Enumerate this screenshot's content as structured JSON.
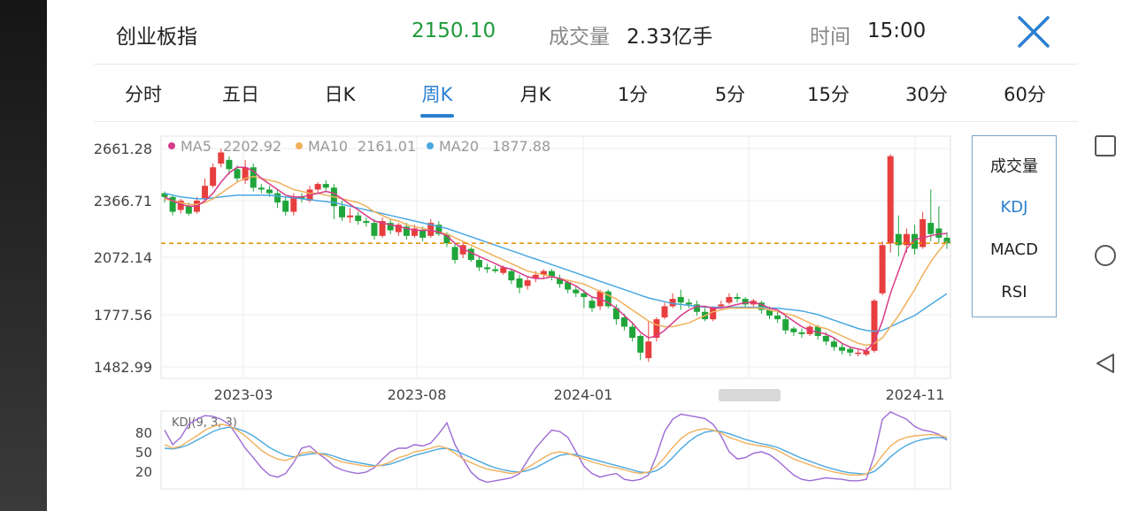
{
  "header": {
    "index_name": "创业板指",
    "price": "2150.10",
    "volume_label": "成交量",
    "volume_value": "2.33亿手",
    "time_label": "时间",
    "time_value": "15:00"
  },
  "tabs": [
    {
      "label": "分时"
    },
    {
      "label": "五日"
    },
    {
      "label": "日K"
    },
    {
      "label": "周K"
    },
    {
      "label": "月K"
    },
    {
      "label": "1分"
    },
    {
      "label": "5分"
    },
    {
      "label": "15分"
    },
    {
      "label": "30分"
    },
    {
      "label": "60分"
    }
  ],
  "active_tab": "周K",
  "indicators": [
    {
      "label": "成交量"
    },
    {
      "label": "KDJ"
    },
    {
      "label": "MACD"
    },
    {
      "label": "RSI"
    }
  ],
  "active_indicator": "KDJ",
  "nav_icons": [
    "square-icon",
    "circle-icon",
    "back-triangle-icon"
  ],
  "colors": {
    "up": "#e83e3e",
    "down": "#20a53a",
    "price_green": "#1f9a3a",
    "accent": "#2b7fd0",
    "ma5": "#d83a8a",
    "ma10": "#f0b05c",
    "ma20": "#4aa8e0",
    "ref_line": "#e68a00",
    "k": "#f0b05c",
    "d": "#4aa8e0",
    "j": "#9c6bd6"
  },
  "chart_data": [
    {
      "type": "candlestick",
      "title": "",
      "legend": [
        {
          "name": "MA5",
          "value": "2202.92"
        },
        {
          "name": "MA10",
          "value": "2161.01"
        },
        {
          "name": "MA20",
          "value": "1877.88"
        }
      ],
      "y_ticks": [
        "2661.28",
        "2366.71",
        "2072.14",
        "1777.56",
        "1482.99"
      ],
      "ylim": [
        1482.99,
        2661.28
      ],
      "x_ticks": [
        "2023-03",
        "2023-08",
        "2024-01",
        "2024-11"
      ],
      "reference_line": 2150.1,
      "candles": [
        [
          2420,
          2400,
          2430,
          2370
        ],
        [
          2400,
          2320,
          2410,
          2300
        ],
        [
          2330,
          2380,
          2390,
          2310
        ],
        [
          2350,
          2310,
          2370,
          2300
        ],
        [
          2320,
          2380,
          2400,
          2310
        ],
        [
          2390,
          2460,
          2500,
          2380
        ],
        [
          2460,
          2560,
          2580,
          2450
        ],
        [
          2580,
          2640,
          2660,
          2560
        ],
        [
          2600,
          2550,
          2620,
          2520
        ],
        [
          2550,
          2500,
          2570,
          2480
        ],
        [
          2490,
          2560,
          2600,
          2470
        ],
        [
          2560,
          2450,
          2580,
          2430
        ],
        [
          2450,
          2440,
          2470,
          2420
        ],
        [
          2440,
          2420,
          2460,
          2400
        ],
        [
          2420,
          2370,
          2440,
          2340
        ],
        [
          2380,
          2320,
          2400,
          2300
        ],
        [
          2320,
          2400,
          2420,
          2300
        ],
        [
          2400,
          2390,
          2420,
          2370
        ],
        [
          2380,
          2440,
          2460,
          2370
        ],
        [
          2440,
          2470,
          2480,
          2420
        ],
        [
          2470,
          2450,
          2490,
          2430
        ],
        [
          2450,
          2350,
          2470,
          2280
        ],
        [
          2350,
          2290,
          2380,
          2270
        ],
        [
          2290,
          2300,
          2340,
          2260
        ],
        [
          2300,
          2270,
          2320,
          2250
        ],
        [
          2270,
          2260,
          2290,
          2240
        ],
        [
          2260,
          2190,
          2280,
          2170
        ],
        [
          2190,
          2270,
          2290,
          2180
        ],
        [
          2260,
          2220,
          2280,
          2200
        ],
        [
          2210,
          2250,
          2260,
          2190
        ],
        [
          2240,
          2190,
          2260,
          2170
        ],
        [
          2190,
          2230,
          2250,
          2180
        ],
        [
          2220,
          2180,
          2240,
          2160
        ],
        [
          2190,
          2260,
          2280,
          2180
        ],
        [
          2250,
          2200,
          2270,
          2190
        ],
        [
          2200,
          2150,
          2210,
          2130
        ],
        [
          2130,
          2060,
          2150,
          2040
        ],
        [
          2090,
          2140,
          2160,
          2070
        ],
        [
          2120,
          2060,
          2130,
          2050
        ],
        [
          2060,
          2020,
          2080,
          2000
        ],
        [
          2020,
          2010,
          2040,
          1990
        ],
        [
          2010,
          2000,
          2030,
          1990
        ],
        [
          1990,
          2020,
          2030,
          1980
        ],
        [
          2000,
          1950,
          2010,
          1930
        ],
        [
          1960,
          1910,
          1980,
          1880
        ],
        [
          1920,
          1950,
          1970,
          1900
        ],
        [
          1960,
          1980,
          2000,
          1940
        ],
        [
          1980,
          2000,
          2010,
          1960
        ],
        [
          2000,
          1970,
          2010,
          1950
        ],
        [
          1960,
          1930,
          1980,
          1910
        ],
        [
          1940,
          1900,
          1950,
          1880
        ],
        [
          1900,
          1880,
          1920,
          1860
        ],
        [
          1880,
          1860,
          1900,
          1800
        ],
        [
          1840,
          1800,
          1860,
          1780
        ],
        [
          1810,
          1890,
          1900,
          1790
        ],
        [
          1890,
          1810,
          1900,
          1800
        ],
        [
          1800,
          1740,
          1820,
          1710
        ],
        [
          1750,
          1700,
          1770,
          1680
        ],
        [
          1700,
          1640,
          1720,
          1620
        ],
        [
          1650,
          1560,
          1660,
          1520
        ],
        [
          1530,
          1620,
          1730,
          1510
        ],
        [
          1640,
          1740,
          1750,
          1620
        ],
        [
          1750,
          1810,
          1830,
          1740
        ],
        [
          1810,
          1850,
          1880,
          1800
        ],
        [
          1860,
          1830,
          1900,
          1790
        ],
        [
          1830,
          1820,
          1850,
          1800
        ],
        [
          1820,
          1780,
          1840,
          1760
        ],
        [
          1780,
          1740,
          1800,
          1730
        ],
        [
          1740,
          1800,
          1810,
          1730
        ],
        [
          1810,
          1820,
          1840,
          1800
        ],
        [
          1830,
          1860,
          1880,
          1820
        ],
        [
          1860,
          1850,
          1880,
          1830
        ],
        [
          1850,
          1820,
          1860,
          1800
        ],
        [
          1820,
          1840,
          1850,
          1810
        ],
        [
          1830,
          1790,
          1840,
          1770
        ],
        [
          1790,
          1760,
          1810,
          1740
        ],
        [
          1760,
          1740,
          1780,
          1720
        ],
        [
          1740,
          1680,
          1760,
          1660
        ],
        [
          1690,
          1670,
          1700,
          1650
        ],
        [
          1670,
          1660,
          1690,
          1640
        ],
        [
          1660,
          1700,
          1710,
          1650
        ],
        [
          1700,
          1650,
          1710,
          1630
        ],
        [
          1650,
          1620,
          1670,
          1600
        ],
        [
          1620,
          1590,
          1640,
          1570
        ],
        [
          1590,
          1570,
          1610,
          1550
        ],
        [
          1580,
          1560,
          1590,
          1540
        ],
        [
          1560,
          1560,
          1580,
          1540
        ],
        [
          1550,
          1570,
          1590,
          1540
        ],
        [
          1570,
          1840,
          1850,
          1560
        ],
        [
          1880,
          2140,
          2160,
          1870
        ],
        [
          2150,
          2620,
          2630,
          2100
        ],
        [
          2200,
          2140,
          2300,
          2080
        ],
        [
          2140,
          2200,
          2230,
          2100
        ],
        [
          2200,
          2120,
          2250,
          2090
        ],
        [
          2130,
          2280,
          2320,
          2120
        ],
        [
          2260,
          2200,
          2440,
          2160
        ],
        [
          2230,
          2180,
          2350,
          2150
        ],
        [
          2180,
          2150,
          2210,
          2120
        ]
      ],
      "ma5": [
        2400,
        2380,
        2360,
        2350,
        2350,
        2380,
        2420,
        2480,
        2530,
        2560,
        2560,
        2540,
        2500,
        2470,
        2440,
        2410,
        2400,
        2400,
        2410,
        2420,
        2430,
        2420,
        2390,
        2360,
        2330,
        2300,
        2270,
        2260,
        2250,
        2240,
        2230,
        2220,
        2220,
        2220,
        2210,
        2190,
        2150,
        2120,
        2100,
        2080,
        2060,
        2040,
        2020,
        2010,
        1990,
        1970,
        1960,
        1960,
        1970,
        1960,
        1940,
        1920,
        1890,
        1860,
        1850,
        1830,
        1800,
        1760,
        1720,
        1670,
        1640,
        1650,
        1680,
        1720,
        1760,
        1790,
        1810,
        1810,
        1800,
        1800,
        1810,
        1820,
        1830,
        1830,
        1820,
        1800,
        1790,
        1760,
        1730,
        1700,
        1680,
        1670,
        1660,
        1640,
        1610,
        1590,
        1580,
        1570,
        1620,
        1730,
        1880,
        2000,
        2120,
        2170,
        2180,
        2190,
        2200,
        2202.92
      ],
      "ma10": [
        2390,
        2380,
        2370,
        2360,
        2360,
        2370,
        2390,
        2420,
        2450,
        2480,
        2500,
        2510,
        2500,
        2490,
        2480,
        2460,
        2440,
        2430,
        2420,
        2420,
        2410,
        2400,
        2390,
        2380,
        2370,
        2350,
        2320,
        2300,
        2280,
        2270,
        2250,
        2240,
        2230,
        2220,
        2210,
        2200,
        2180,
        2160,
        2140,
        2120,
        2100,
        2080,
        2060,
        2040,
        2020,
        2000,
        1990,
        1980,
        1970,
        1960,
        1950,
        1940,
        1930,
        1910,
        1890,
        1870,
        1850,
        1820,
        1790,
        1760,
        1730,
        1710,
        1700,
        1700,
        1710,
        1720,
        1740,
        1760,
        1780,
        1790,
        1800,
        1800,
        1800,
        1800,
        1800,
        1790,
        1780,
        1770,
        1760,
        1740,
        1720,
        1700,
        1690,
        1670,
        1650,
        1630,
        1610,
        1600,
        1610,
        1640,
        1700,
        1760,
        1830,
        1900,
        1980,
        2050,
        2110,
        2161.01
      ],
      "ma20": [
        2420,
        2410,
        2400,
        2395,
        2390,
        2390,
        2395,
        2400,
        2405,
        2410,
        2410,
        2410,
        2410,
        2410,
        2405,
        2400,
        2395,
        2390,
        2385,
        2380,
        2375,
        2370,
        2360,
        2350,
        2340,
        2330,
        2320,
        2310,
        2300,
        2290,
        2280,
        2270,
        2260,
        2250,
        2240,
        2230,
        2215,
        2200,
        2185,
        2170,
        2155,
        2140,
        2125,
        2110,
        2095,
        2080,
        2065,
        2050,
        2035,
        2020,
        2005,
        1990,
        1975,
        1960,
        1945,
        1930,
        1915,
        1900,
        1885,
        1870,
        1855,
        1845,
        1835,
        1825,
        1820,
        1815,
        1810,
        1805,
        1805,
        1805,
        1805,
        1805,
        1805,
        1805,
        1805,
        1800,
        1800,
        1795,
        1790,
        1785,
        1775,
        1765,
        1750,
        1735,
        1720,
        1705,
        1690,
        1680,
        1675,
        1680,
        1700,
        1720,
        1740,
        1760,
        1790,
        1820,
        1850,
        1877.88
      ]
    },
    {
      "type": "line",
      "title": "KDJ(9, 3, 3)",
      "y_ticks": [
        "80",
        "50",
        "20"
      ],
      "ylim": [
        0,
        105
      ],
      "series": [
        {
          "name": "K",
          "values": [
            60,
            55,
            58,
            65,
            72,
            80,
            85,
            88,
            86,
            80,
            72,
            62,
            52,
            45,
            40,
            38,
            42,
            48,
            50,
            48,
            45,
            40,
            36,
            34,
            32,
            30,
            30,
            32,
            36,
            42,
            45,
            50,
            52,
            55,
            58,
            55,
            48,
            40,
            35,
            30,
            26,
            24,
            22,
            20,
            22,
            28,
            35,
            42,
            48,
            50,
            48,
            44,
            40,
            36,
            33,
            30,
            28,
            25,
            22,
            20,
            22,
            30,
            42,
            56,
            68,
            76,
            80,
            82,
            80,
            76,
            70,
            66,
            62,
            60,
            58,
            56,
            52,
            46,
            40,
            36,
            32,
            28,
            25,
            22,
            20,
            18,
            18,
            19,
            30,
            45,
            58,
            66,
            70,
            72,
            73,
            74,
            73,
            70
          ]
        },
        {
          "name": "D",
          "values": [
            55,
            54,
            56,
            60,
            66,
            72,
            78,
            82,
            84,
            82,
            78,
            72,
            64,
            56,
            50,
            45,
            43,
            45,
            47,
            48,
            47,
            44,
            40,
            37,
            35,
            33,
            31,
            31,
            33,
            37,
            41,
            45,
            48,
            51,
            54,
            55,
            52,
            47,
            42,
            37,
            32,
            28,
            25,
            23,
            22,
            24,
            28,
            34,
            40,
            45,
            47,
            46,
            43,
            40,
            37,
            34,
            31,
            28,
            25,
            22,
            21,
            24,
            31,
            42,
            54,
            64,
            72,
            77,
            79,
            78,
            75,
            71,
            67,
            64,
            61,
            59,
            56,
            51,
            46,
            41,
            37,
            33,
            29,
            26,
            23,
            21,
            20,
            19,
            23,
            32,
            43,
            52,
            59,
            64,
            67,
            69,
            70,
            68
          ]
        },
        {
          "name": "J",
          "values": [
            80,
            60,
            70,
            88,
            95,
            100,
            99,
            95,
            88,
            72,
            55,
            42,
            28,
            18,
            15,
            20,
            35,
            55,
            58,
            48,
            40,
            30,
            25,
            22,
            20,
            22,
            28,
            40,
            50,
            55,
            55,
            60,
            58,
            62,
            75,
            90,
            60,
            40,
            22,
            12,
            8,
            10,
            12,
            14,
            20,
            38,
            55,
            68,
            80,
            78,
            70,
            50,
            30,
            20,
            15,
            18,
            20,
            12,
            10,
            12,
            18,
            45,
            78,
            95,
            102,
            100,
            98,
            96,
            88,
            72,
            50,
            40,
            42,
            48,
            50,
            46,
            38,
            28,
            18,
            12,
            10,
            12,
            14,
            13,
            12,
            10,
            10,
            12,
            45,
            95,
            110,
            100,
            95,
            85,
            80,
            78,
            74,
            66
          ]
        }
      ]
    }
  ]
}
